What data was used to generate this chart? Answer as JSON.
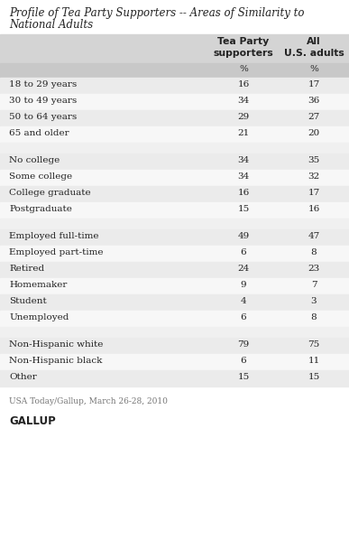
{
  "title_line1": "Profile of Tea Party Supporters -- Areas of Similarity to",
  "title_line2": "National Adults",
  "col1_header_line1": "Tea Party",
  "col1_header_line2": "supporters",
  "col2_header_line1": "All",
  "col2_header_line2": "U.S. adults",
  "pct_label": "%",
  "rows": [
    {
      "label": "18 to 29 years",
      "tea": "16",
      "all": "17",
      "bg": "#ebebeb"
    },
    {
      "label": "30 to 49 years",
      "tea": "34",
      "all": "36",
      "bg": "#f7f7f7"
    },
    {
      "label": "50 to 64 years",
      "tea": "29",
      "all": "27",
      "bg": "#ebebeb"
    },
    {
      "label": "65 and older",
      "tea": "21",
      "all": "20",
      "bg": "#f7f7f7"
    },
    {
      "label": "",
      "tea": "",
      "all": "",
      "bg": "#f0f0f0"
    },
    {
      "label": "No college",
      "tea": "34",
      "all": "35",
      "bg": "#ebebeb"
    },
    {
      "label": "Some college",
      "tea": "34",
      "all": "32",
      "bg": "#f7f7f7"
    },
    {
      "label": "College graduate",
      "tea": "16",
      "all": "17",
      "bg": "#ebebeb"
    },
    {
      "label": "Postgraduate",
      "tea": "15",
      "all": "16",
      "bg": "#f7f7f7"
    },
    {
      "label": "",
      "tea": "",
      "all": "",
      "bg": "#f0f0f0"
    },
    {
      "label": "Employed full-time",
      "tea": "49",
      "all": "47",
      "bg": "#ebebeb"
    },
    {
      "label": "Employed part-time",
      "tea": "6",
      "all": "8",
      "bg": "#f7f7f7"
    },
    {
      "label": "Retired",
      "tea": "24",
      "all": "23",
      "bg": "#ebebeb"
    },
    {
      "label": "Homemaker",
      "tea": "9",
      "all": "7",
      "bg": "#f7f7f7"
    },
    {
      "label": "Student",
      "tea": "4",
      "all": "3",
      "bg": "#ebebeb"
    },
    {
      "label": "Unemployed",
      "tea": "6",
      "all": "8",
      "bg": "#f7f7f7"
    },
    {
      "label": "",
      "tea": "",
      "all": "",
      "bg": "#f0f0f0"
    },
    {
      "label": "Non-Hispanic white",
      "tea": "79",
      "all": "75",
      "bg": "#ebebeb"
    },
    {
      "label": "Non-Hispanic black",
      "tea": "6",
      "all": "11",
      "bg": "#f7f7f7"
    },
    {
      "label": "Other",
      "tea": "15",
      "all": "15",
      "bg": "#ebebeb"
    }
  ],
  "footer": "USA Today/Gallup, March 26-28, 2010",
  "branding": "GALLUP",
  "bg_color": "#ffffff",
  "header_bg": "#d4d4d4",
  "pct_row_bg": "#c8c8c8",
  "title_color": "#222222",
  "text_color": "#222222",
  "footer_color": "#777777",
  "branding_color": "#222222",
  "title_fontsize": 8.5,
  "header_fontsize": 7.8,
  "data_fontsize": 7.5,
  "footer_fontsize": 6.5,
  "branding_fontsize": 8.5
}
